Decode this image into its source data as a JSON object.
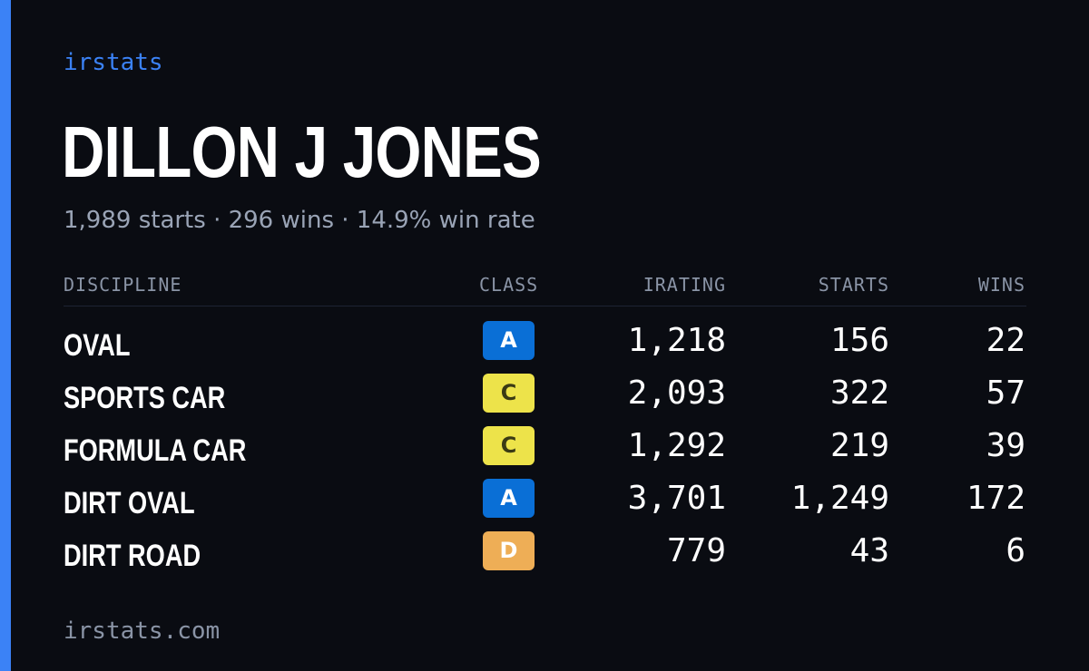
{
  "brand": "irstats",
  "driver": {
    "name": "DILLON J JONES",
    "summary": "1,989 starts · 296 wins · 14.9% win rate"
  },
  "table": {
    "headers": {
      "discipline": "DISCIPLINE",
      "class": "CLASS",
      "irating": "IRATING",
      "starts": "STARTS",
      "wins": "WINS"
    },
    "rows": [
      {
        "discipline": "OVAL",
        "class": "A",
        "class_color": "#0a6fd6",
        "class_text_color": "#ffffff",
        "irating": "1,218",
        "starts": "156",
        "wins": "22"
      },
      {
        "discipline": "SPORTS CAR",
        "class": "C",
        "class_color": "#ede34a",
        "class_text_color": "#3a3a14",
        "irating": "2,093",
        "starts": "322",
        "wins": "57"
      },
      {
        "discipline": "FORMULA CAR",
        "class": "C",
        "class_color": "#ede34a",
        "class_text_color": "#3a3a14",
        "irating": "1,292",
        "starts": "219",
        "wins": "39"
      },
      {
        "discipline": "DIRT OVAL",
        "class": "A",
        "class_color": "#0a6fd6",
        "class_text_color": "#ffffff",
        "irating": "3,701",
        "starts": "1,249",
        "wins": "172"
      },
      {
        "discipline": "DIRT ROAD",
        "class": "D",
        "class_color": "#eeae56",
        "class_text_color": "#ffffff",
        "irating": "779",
        "starts": "43",
        "wins": "6"
      }
    ]
  },
  "footer": "irstats.com",
  "colors": {
    "background": "#0a0c12",
    "accent": "#3b82f6",
    "muted": "#9aa4b6"
  }
}
